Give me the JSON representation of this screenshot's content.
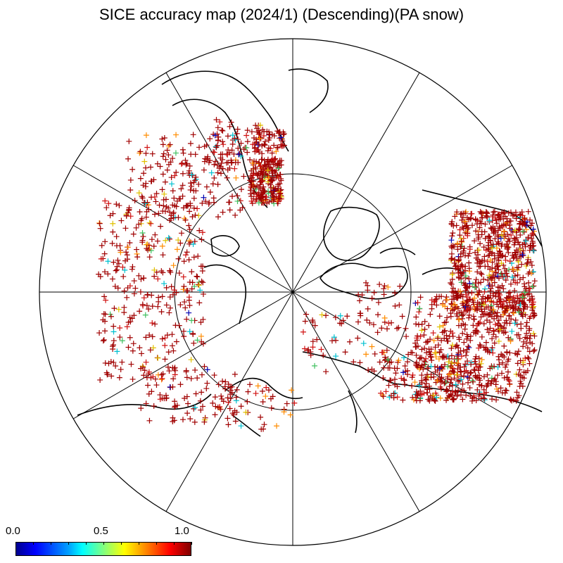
{
  "title": "SICE accuracy map (2024/1) (Descending)(PA snow)",
  "colorbar": {
    "labels": [
      "0.0",
      "0.5",
      "1.0"
    ],
    "range": [
      0.0,
      1.0
    ],
    "colors": [
      "#00008f",
      "#0000ff",
      "#00a0ff",
      "#00ffff",
      "#80ff80",
      "#ffff00",
      "#ff8000",
      "#ff0000",
      "#800000"
    ]
  },
  "map": {
    "projection": "north polar stereographic",
    "meridian_lines": 12,
    "latitude_circle": "inner graticule circle",
    "marker": "+",
    "dominant_marker_color": "#a00000"
  }
}
